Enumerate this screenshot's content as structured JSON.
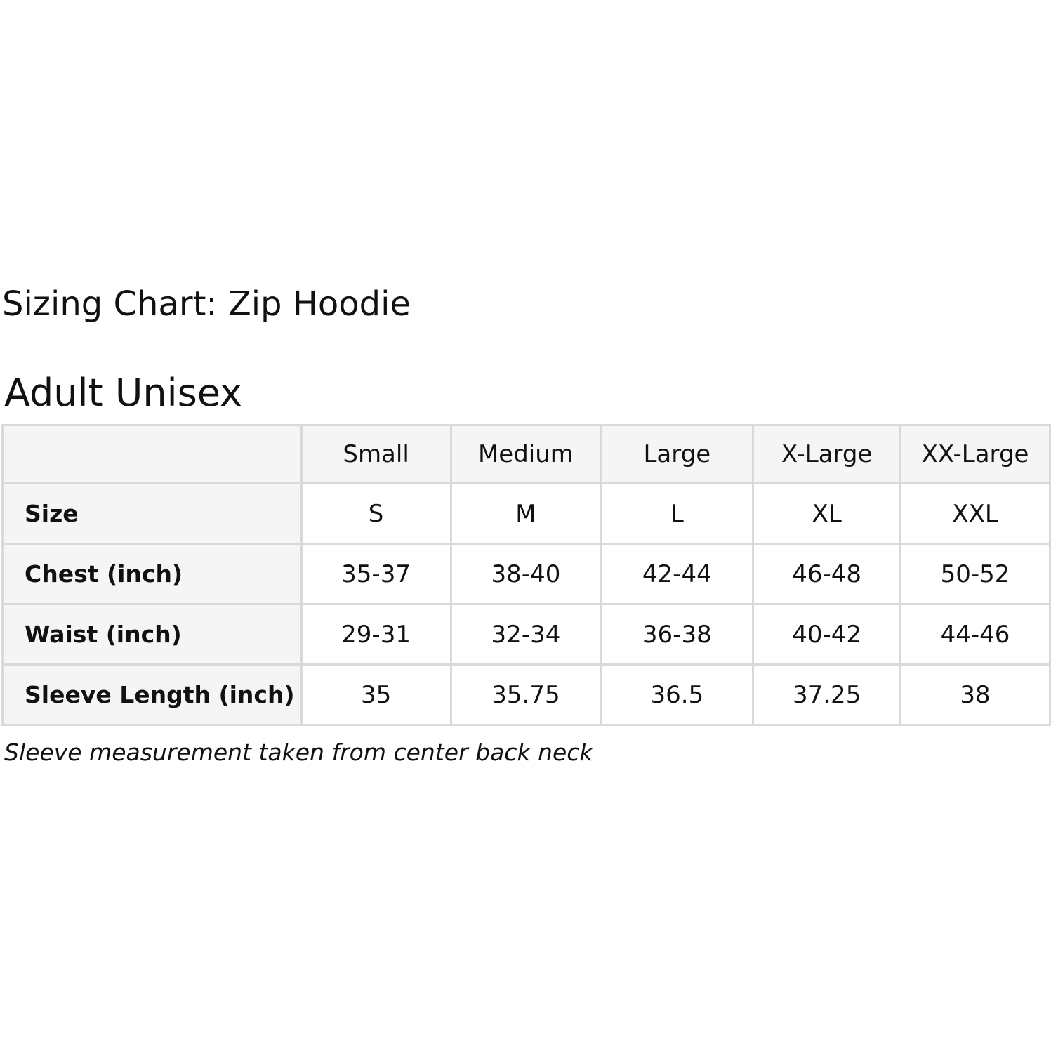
{
  "title": "Sizing Chart: Zip Hoodie",
  "subtitle": "Adult Unisex",
  "table": {
    "columns": [
      "",
      "Small",
      "Medium",
      "Large",
      "X-Large",
      "XX-Large"
    ],
    "rows": [
      {
        "label": "Size",
        "values": [
          "S",
          "M",
          "L",
          "XL",
          "XXL"
        ]
      },
      {
        "label": "Chest (inch)",
        "values": [
          "35-37",
          "38-40",
          "42-44",
          "46-48",
          "50-52"
        ]
      },
      {
        "label": "Waist (inch)",
        "values": [
          "29-31",
          "32-34",
          "36-38",
          "40-42",
          "44-46"
        ]
      },
      {
        "label": "Sleeve Length (inch)",
        "values": [
          "35",
          "35.75",
          "36.5",
          "37.25",
          "38"
        ]
      }
    ]
  },
  "note": "Sleeve measurement taken from center back neck"
}
